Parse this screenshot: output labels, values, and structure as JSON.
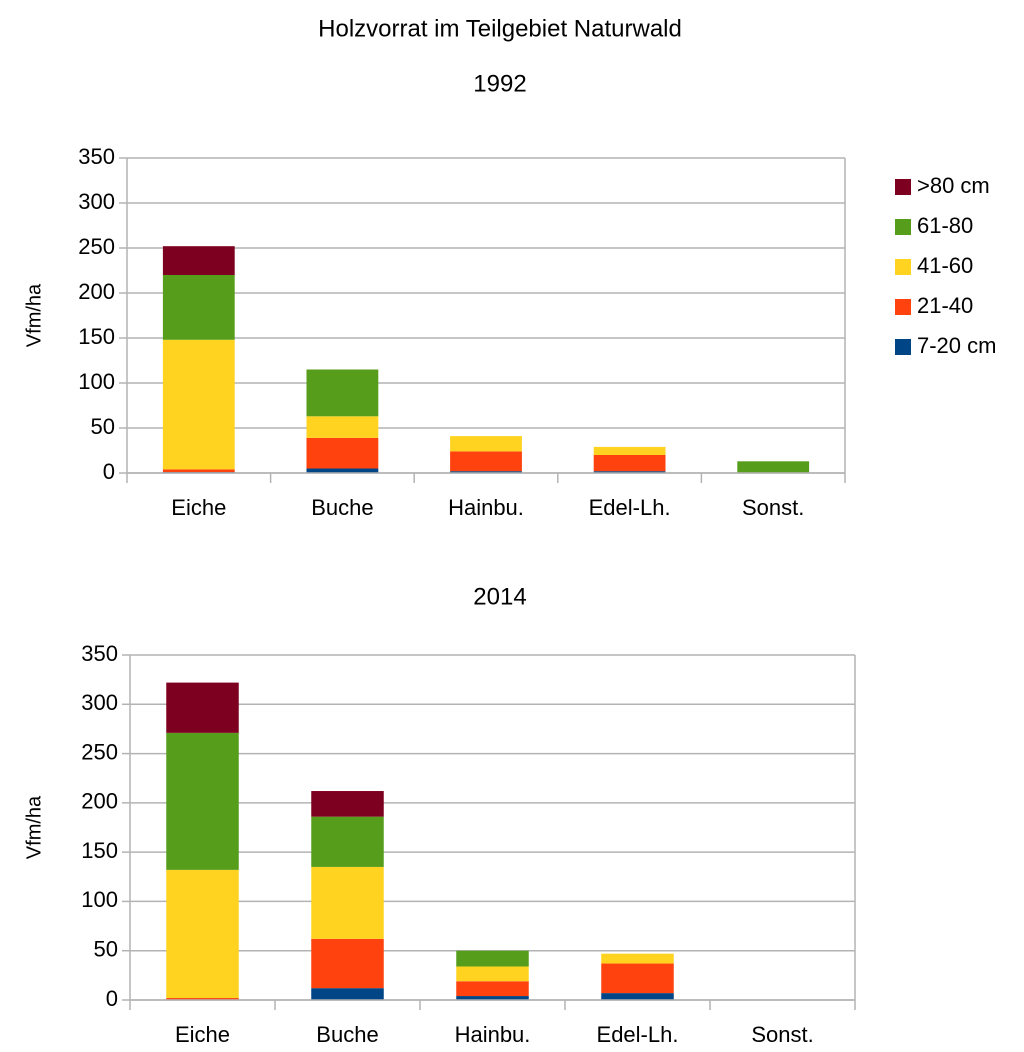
{
  "title": "Holzvorrat im Teilgebiet Naturwald",
  "chart_data": [
    {
      "type": "bar",
      "stacked": true,
      "title": "1992",
      "y_label": "Vfm/ha",
      "categories": [
        "Eiche",
        "Buche",
        "Hainbu.",
        "Edel-Lh.",
        "Sonst."
      ],
      "series": [
        {
          "name": "7-20 cm",
          "color": "#004586",
          "values": [
            1,
            5,
            2,
            2,
            0
          ]
        },
        {
          "name": "21-40",
          "color": "#ff420e",
          "values": [
            3,
            34,
            22,
            18,
            0
          ]
        },
        {
          "name": "41-60",
          "color": "#ffd320",
          "values": [
            144,
            24,
            17,
            9,
            0
          ]
        },
        {
          "name": "61-80",
          "color": "#579d1c",
          "values": [
            72,
            52,
            0,
            0,
            13
          ]
        },
        {
          "name": ">80 cm",
          "color": "#7e0021",
          "values": [
            32,
            0,
            0,
            0,
            0
          ]
        }
      ],
      "ylim": [
        0,
        350
      ],
      "yticks": [
        0,
        50,
        100,
        150,
        200,
        250,
        300,
        350
      ],
      "grid": true,
      "legend": "right"
    },
    {
      "type": "bar",
      "stacked": true,
      "title": "2014",
      "y_label": "Vfm/ha",
      "categories": [
        "Eiche",
        "Buche",
        "Hainbu.",
        "Edel-Lh.",
        "Sonst."
      ],
      "series": [
        {
          "name": "7-20 cm",
          "color": "#004586",
          "values": [
            0,
            12,
            4,
            7,
            0
          ]
        },
        {
          "name": "21-40",
          "color": "#ff420e",
          "values": [
            2,
            50,
            15,
            30,
            0
          ]
        },
        {
          "name": "41-60",
          "color": "#ffd320",
          "values": [
            130,
            73,
            15,
            10,
            0
          ]
        },
        {
          "name": "61-80",
          "color": "#579d1c",
          "values": [
            139,
            51,
            16,
            0,
            0
          ]
        },
        {
          "name": ">80 cm",
          "color": "#7e0021",
          "values": [
            51,
            26,
            0,
            0,
            0
          ]
        }
      ],
      "ylim": [
        0,
        350
      ],
      "yticks": [
        0,
        50,
        100,
        150,
        200,
        250,
        300,
        350
      ],
      "grid": true,
      "legend": "none"
    }
  ]
}
